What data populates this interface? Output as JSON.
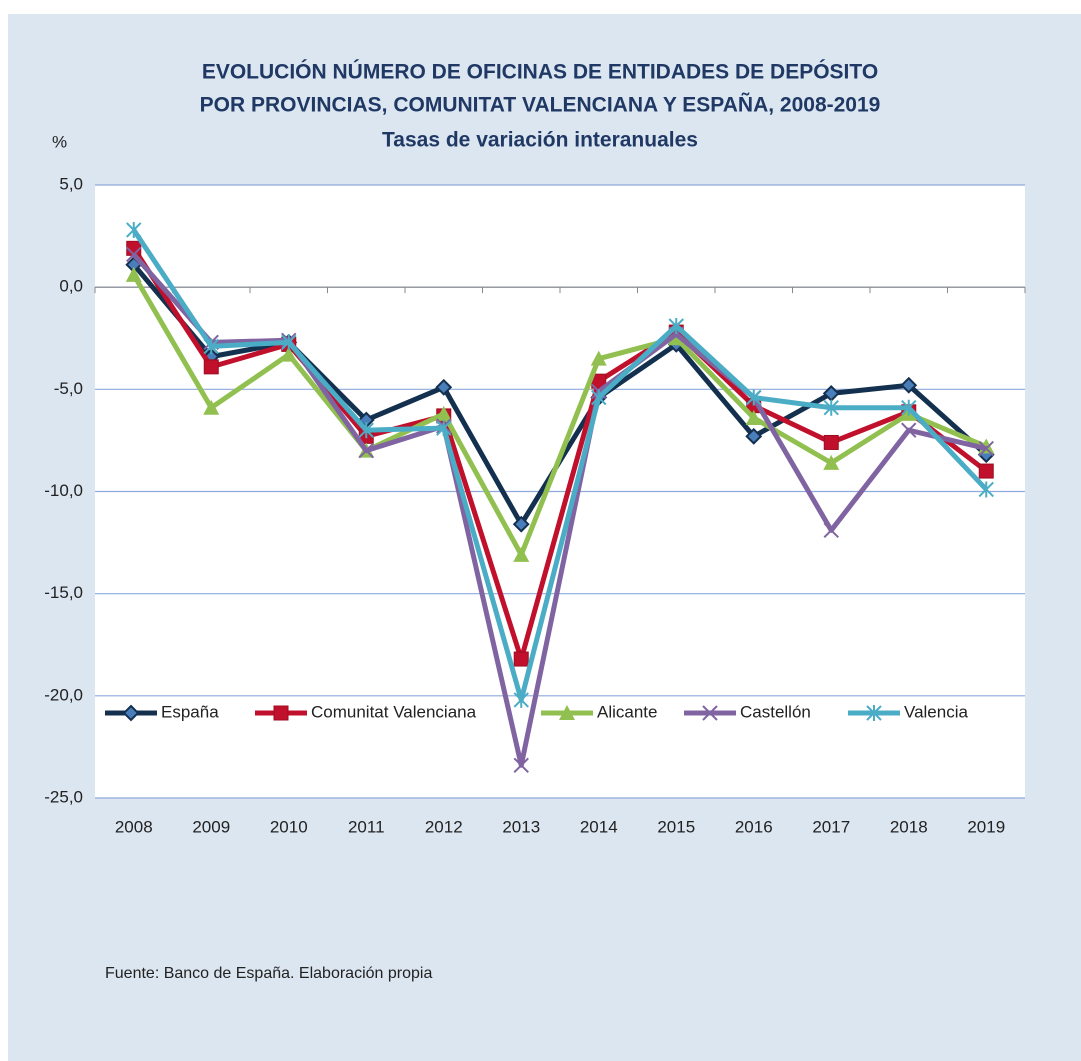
{
  "chart_data": {
    "type": "line",
    "title": [
      "EVOLUCIÓN  NÚMERO DE OFICINAS DE ENTIDADES DE DEPÓSITO",
      "POR PROVINCIAS, COMUNITAT VALENCIANA Y ESPAÑA, 2008-2019"
    ],
    "subtitle": "Tasas de variación interanuales",
    "ylabel": "%",
    "source": "Fuente:  Banco de España. Elaboración propia",
    "categories": [
      "2008",
      "2009",
      "2010",
      "2011",
      "2012",
      "2013",
      "2014",
      "2015",
      "2016",
      "2017",
      "2018",
      "2019"
    ],
    "series": [
      {
        "name": "España",
        "color": "#14304f",
        "marker": "diamond",
        "values": [
          1.1,
          -3.4,
          -2.7,
          -6.5,
          -4.9,
          -11.6,
          -5.4,
          -2.8,
          -7.3,
          -5.2,
          -4.8,
          -8.2
        ]
      },
      {
        "name": "Comunitat Valenciana",
        "color": "#c0102b",
        "marker": "square",
        "values": [
          1.9,
          -3.9,
          -2.8,
          -7.3,
          -6.3,
          -18.2,
          -4.6,
          -2.2,
          -5.8,
          -7.6,
          -6.1,
          -9.0
        ]
      },
      {
        "name": "Alicante",
        "color": "#92c050",
        "marker": "triangle",
        "values": [
          0.6,
          -5.9,
          -3.3,
          -8.0,
          -6.2,
          -13.1,
          -3.5,
          -2.5,
          -6.4,
          -8.6,
          -6.2,
          -7.8
        ]
      },
      {
        "name": "Castellón",
        "color": "#8064a2",
        "marker": "x",
        "values": [
          1.6,
          -2.7,
          -2.6,
          -8.0,
          -6.8,
          -23.4,
          -5.1,
          -2.3,
          -5.4,
          -11.9,
          -7.0,
          -7.9
        ]
      },
      {
        "name": "Valencia",
        "color": "#4bacc6",
        "marker": "star",
        "values": [
          2.8,
          -2.9,
          -2.7,
          -7.0,
          -6.9,
          -20.2,
          -5.4,
          -1.9,
          -5.4,
          -5.9,
          -5.9,
          -9.9
        ]
      }
    ],
    "ylim": [
      -25,
      5
    ],
    "yticks": [
      {
        "value": 5,
        "label": "5,0"
      },
      {
        "value": 0,
        "label": "0,0"
      },
      {
        "value": -5,
        "label": "-5,0"
      },
      {
        "value": -10,
        "label": "-10,0"
      },
      {
        "value": -15,
        "label": "-15,0"
      },
      {
        "value": -20,
        "label": "-20,0"
      },
      {
        "value": -25,
        "label": "-25,0"
      }
    ],
    "grid": true,
    "legend": "bottom"
  }
}
